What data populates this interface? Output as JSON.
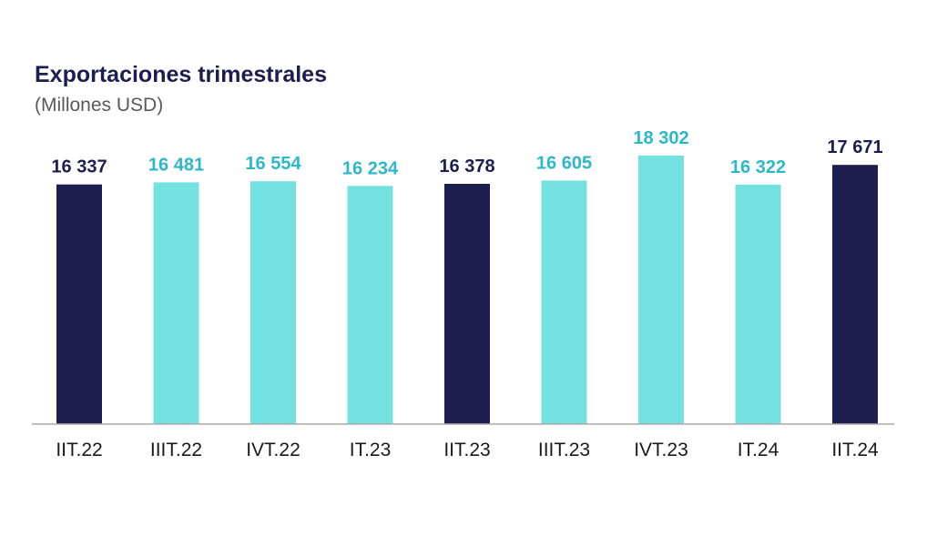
{
  "chart_data": {
    "type": "bar",
    "title": "Exportaciones trimestrales",
    "subtitle": "(Millones USD)",
    "xlabel": "",
    "ylabel": "",
    "ylim": [
      0,
      18302
    ],
    "grid": false,
    "legend": "none",
    "categories": [
      "IIT.22",
      "IIIT.22",
      "IVT.22",
      "IT.23",
      "IIT.23",
      "IIIT.23",
      "IVT.23",
      "IT.24",
      "IIT.24"
    ],
    "values": [
      16337,
      16481,
      16554,
      16234,
      16378,
      16605,
      18302,
      16322,
      17671
    ],
    "value_labels": [
      "16 337",
      "16 481",
      "16 554",
      "16 234",
      "16 378",
      "16 605",
      "18 302",
      "16 322",
      "17 671"
    ],
    "highlight": [
      true,
      false,
      false,
      false,
      true,
      false,
      false,
      false,
      true
    ],
    "colors": {
      "highlight_bar": "#1d1d4f",
      "highlight_label": "#1d1d4f",
      "normal_bar": "#74e1e1",
      "normal_label": "#2cb8c8",
      "axis": "#aaaaaa"
    }
  }
}
